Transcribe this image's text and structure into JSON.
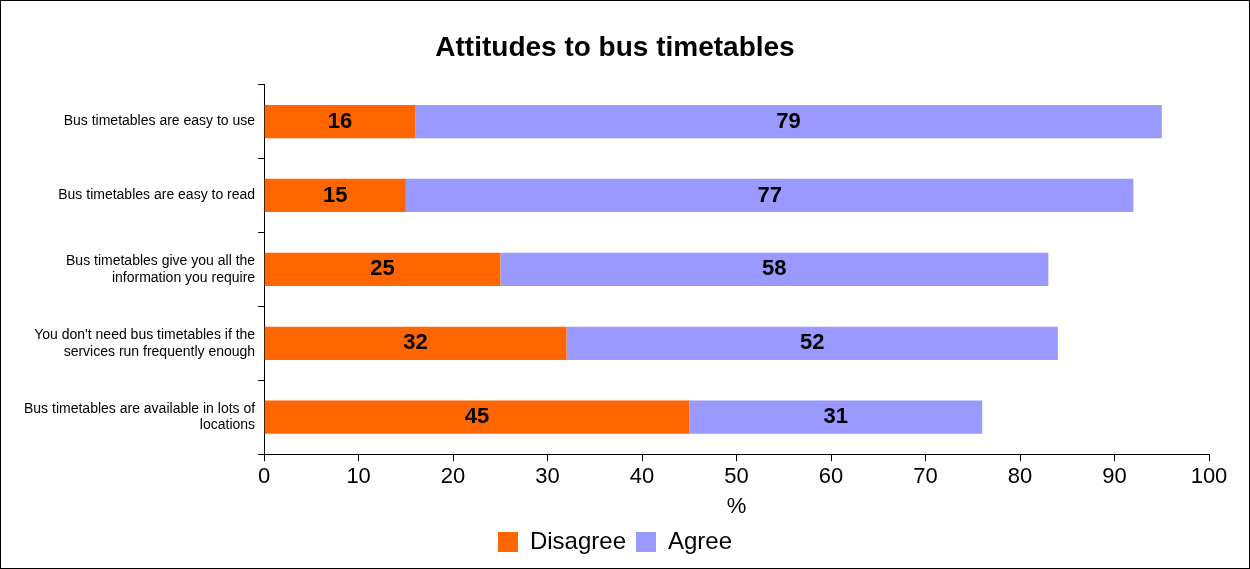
{
  "chart_data": {
    "type": "bar",
    "orientation": "horizontal",
    "stacked": true,
    "title": "Attitudes to bus timetables",
    "xlabel": "%",
    "categories": [
      "Bus timetables are easy to use",
      "Bus timetables are easy to read",
      "Bus timetables give you all the information you require",
      "You don't need bus timetables if the services run frequently enough",
      "Bus timetables are available in lots of locations"
    ],
    "series": [
      {
        "name": "Disagree",
        "color": "#ff6600",
        "values": [
          16,
          15,
          25,
          32,
          45
        ]
      },
      {
        "name": "Agree",
        "color": "#9999ff",
        "values": [
          79,
          77,
          58,
          52,
          31
        ]
      }
    ],
    "xlim": [
      0,
      100
    ],
    "xticks": [
      0,
      10,
      20,
      30,
      40,
      50,
      60,
      70,
      80,
      90,
      100
    ],
    "data_labels": true,
    "grid": false,
    "legend": "bottom"
  }
}
